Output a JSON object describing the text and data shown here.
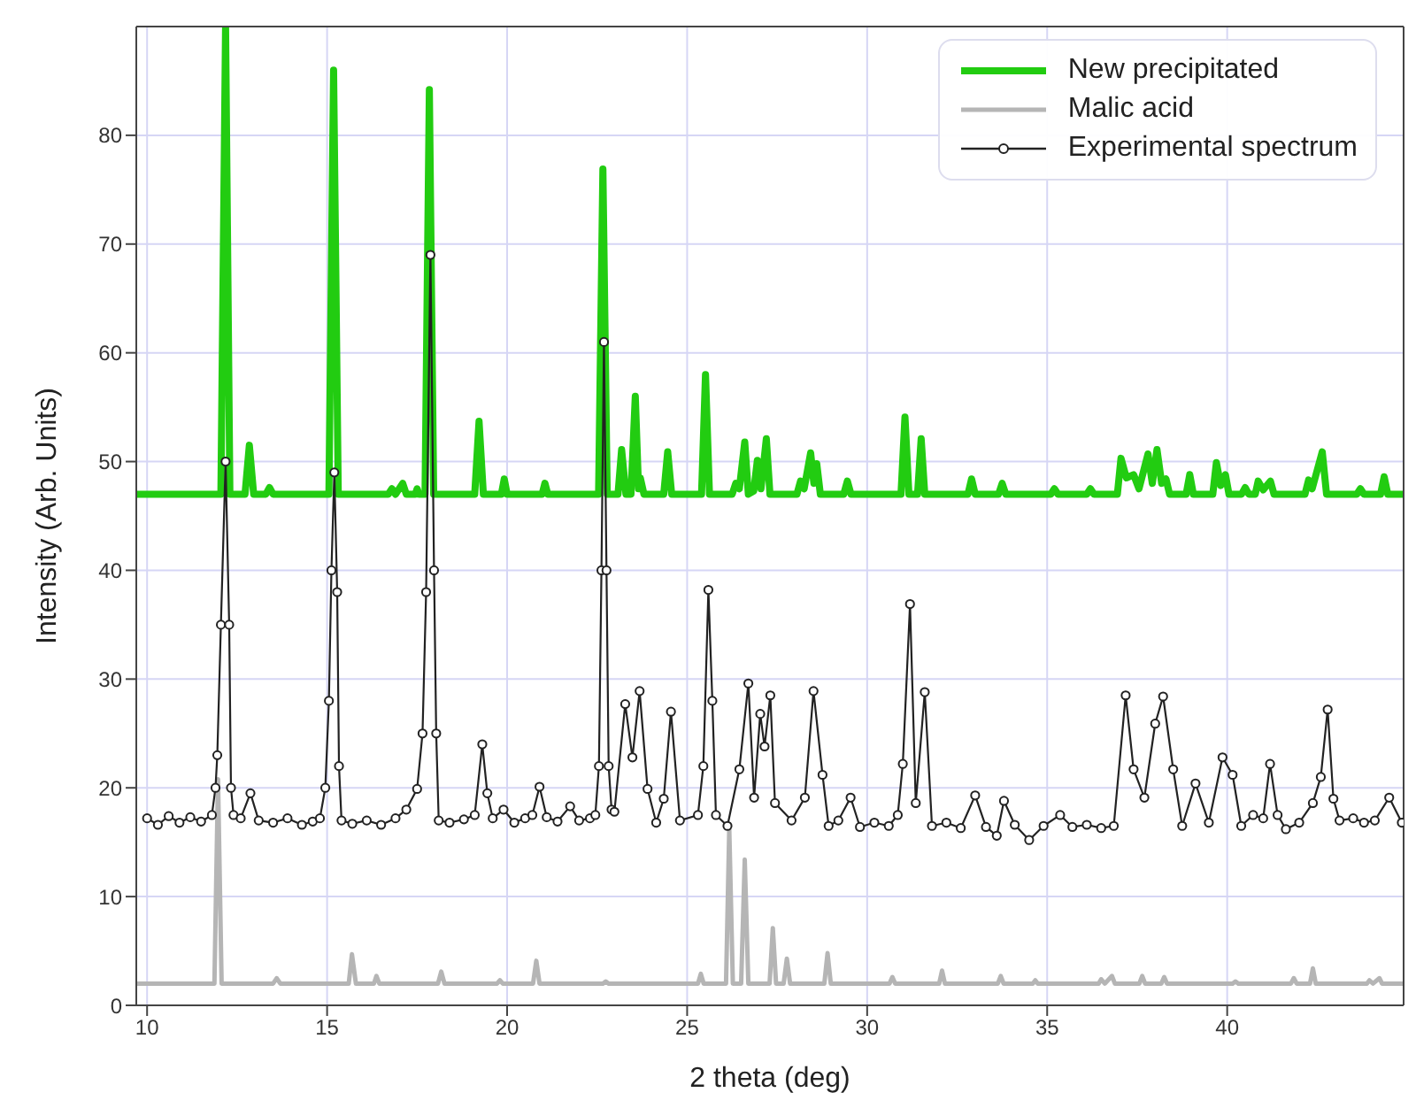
{
  "chart_data": {
    "type": "line",
    "xlabel": "2 theta (deg)",
    "ylabel": "Intensity (Arb. Units)",
    "xlim": [
      9.7,
      44.9
    ],
    "ylim": [
      0,
      90
    ],
    "xticks": [
      10,
      15,
      20,
      25,
      30,
      35,
      40
    ],
    "yticks": [
      0,
      10,
      20,
      30,
      40,
      50,
      60,
      70,
      80
    ],
    "grid": true,
    "legend": "top right",
    "series": [
      {
        "name": "New precipitated",
        "color": "#22cc11",
        "marker": "none",
        "line_style": "solid",
        "x": [
          9.7,
          12.05,
          12.18,
          12.3,
          12.72,
          12.84,
          12.96,
          13.3,
          13.4,
          13.5,
          15.05,
          15.18,
          15.31,
          16.7,
          16.8,
          16.9,
          17.1,
          17.2,
          17.45,
          17.5,
          17.55,
          17.72,
          17.84,
          17.96,
          19.1,
          19.22,
          19.34,
          19.84,
          19.92,
          20.0,
          20.97,
          21.05,
          21.13,
          22.54,
          22.66,
          22.78,
          23.08,
          23.18,
          23.3,
          23.44,
          23.56,
          23.65,
          23.7,
          23.8,
          24.35,
          24.46,
          24.57,
          25.4,
          25.51,
          25.62,
          26.25,
          26.35,
          26.45,
          26.6,
          26.7,
          26.85,
          26.95,
          27.05,
          27.2,
          27.3,
          28.05,
          28.15,
          28.25,
          28.43,
          28.52,
          28.6,
          28.7,
          29.35,
          29.45,
          29.55,
          30.94,
          31.05,
          31.16,
          31.4,
          31.5,
          31.6,
          32.8,
          32.9,
          33.0,
          33.65,
          33.75,
          33.85,
          35.1,
          35.2,
          35.3,
          36.1,
          36.2,
          36.3,
          36.95,
          37.05,
          37.2,
          37.4,
          37.55,
          37.8,
          37.92,
          38.05,
          38.18,
          38.3,
          38.4,
          38.86,
          38.96,
          39.06,
          39.6,
          39.7,
          39.82,
          39.95,
          40.05,
          40.4,
          40.5,
          40.6,
          40.78,
          40.86,
          41.0,
          41.2,
          41.3,
          42.16,
          42.26,
          42.36,
          42.64,
          42.76,
          43.6,
          43.7,
          43.8,
          44.26,
          44.36,
          44.46,
          44.9
        ],
        "values": [
          47,
          47,
          90,
          47,
          47,
          51.5,
          47,
          47,
          47.6,
          47,
          47,
          86,
          47,
          47,
          47.5,
          47,
          48,
          47,
          47,
          47.5,
          47,
          47,
          84.2,
          47,
          47,
          53.7,
          47,
          47,
          48.4,
          47,
          47,
          48,
          47,
          47,
          76.9,
          47,
          47,
          51.1,
          47,
          47,
          56,
          47.5,
          48.5,
          47,
          47,
          50.9,
          47,
          47,
          58,
          47,
          47,
          48,
          47.5,
          51.8,
          47,
          47.3,
          50.1,
          47.5,
          52.1,
          47,
          47,
          48.2,
          47.5,
          50.8,
          48,
          49.8,
          47,
          47,
          48.2,
          47,
          47,
          54.1,
          47,
          47,
          52.1,
          47,
          47,
          48.4,
          47,
          47,
          48,
          47,
          47,
          47.5,
          47,
          47,
          47.5,
          47,
          47,
          50.3,
          48.5,
          48.8,
          47.5,
          50.7,
          48,
          51.1,
          48,
          48.4,
          47,
          47,
          48.8,
          47,
          47,
          49.9,
          47.8,
          48.8,
          47,
          47,
          47.6,
          47,
          47,
          48.2,
          47.4,
          48.2,
          47,
          47,
          48.3,
          47.5,
          50.9,
          47,
          47,
          47.5,
          47,
          47,
          48.6,
          47,
          47
        ]
      },
      {
        "name": "Malic acid",
        "color": "#b5b5b5",
        "marker": "none",
        "line_style": "solid",
        "x": [
          9.7,
          11.87,
          11.97,
          12.07,
          13.5,
          13.6,
          13.7,
          15.6,
          15.69,
          15.8,
          16.3,
          16.37,
          16.45,
          18.08,
          18.17,
          18.26,
          19.72,
          19.8,
          19.88,
          20.72,
          20.81,
          20.9,
          22.66,
          22.74,
          22.82,
          25.3,
          25.38,
          25.46,
          26.08,
          26.17,
          26.27,
          26.5,
          26.6,
          26.7,
          27.29,
          27.38,
          27.47,
          27.68,
          27.77,
          27.86,
          28.81,
          28.9,
          28.99,
          30.62,
          30.7,
          30.78,
          32.0,
          32.08,
          32.16,
          33.63,
          33.71,
          33.79,
          34.6,
          34.67,
          34.74,
          36.43,
          36.5,
          36.6,
          36.8,
          36.88,
          37.56,
          37.64,
          37.72,
          38.17,
          38.25,
          38.33,
          40.15,
          40.23,
          40.31,
          41.77,
          41.85,
          41.93,
          42.3,
          42.38,
          42.46,
          43.88,
          43.95,
          44.05,
          44.23,
          44.3,
          44.9
        ],
        "values": [
          2,
          2,
          20.8,
          2,
          2,
          2.5,
          2,
          2,
          4.7,
          2,
          2,
          2.7,
          2,
          2,
          3.1,
          2,
          2,
          2.3,
          2,
          2,
          4.1,
          2,
          2,
          2.2,
          2,
          2,
          2.9,
          2,
          2,
          16.2,
          2,
          2,
          13.4,
          2,
          2,
          7.1,
          2,
          2,
          4.3,
          2,
          2,
          4.8,
          2,
          2,
          2.6,
          2,
          2,
          3.2,
          2,
          2,
          2.7,
          2,
          2,
          2.3,
          2,
          2,
          2.4,
          2,
          2.7,
          2,
          2,
          2.7,
          2,
          2,
          2.6,
          2,
          2,
          2.2,
          2,
          2,
          2.5,
          2,
          2,
          3.4,
          2,
          2,
          2.3,
          2,
          2.5,
          2,
          2
        ]
      },
      {
        "name": "Experimental spectrum",
        "color": "#222222",
        "marker": "circle",
        "line_style": "solid",
        "x": [
          10.0,
          10.3,
          10.6,
          10.9,
          11.2,
          11.5,
          11.8,
          11.9,
          11.95,
          12.05,
          12.18,
          12.28,
          12.33,
          12.4,
          12.6,
          12.87,
          13.1,
          13.5,
          13.9,
          14.3,
          14.6,
          14.8,
          14.95,
          15.05,
          15.12,
          15.2,
          15.28,
          15.33,
          15.4,
          15.7,
          16.1,
          16.5,
          16.9,
          17.2,
          17.5,
          17.65,
          17.75,
          17.87,
          17.97,
          18.03,
          18.1,
          18.4,
          18.8,
          19.1,
          19.31,
          19.45,
          19.6,
          19.9,
          20.2,
          20.5,
          20.7,
          20.9,
          21.1,
          21.4,
          21.75,
          22.0,
          22.3,
          22.45,
          22.55,
          22.62,
          22.69,
          22.76,
          22.82,
          22.9,
          22.98,
          23.28,
          23.48,
          23.68,
          23.9,
          24.14,
          24.35,
          24.55,
          24.8,
          25.3,
          25.45,
          25.59,
          25.7,
          25.8,
          26.12,
          26.45,
          26.7,
          26.86,
          27.03,
          27.15,
          27.31,
          27.44,
          27.9,
          28.27,
          28.51,
          28.76,
          28.93,
          29.2,
          29.54,
          29.8,
          30.2,
          30.6,
          30.85,
          30.99,
          31.19,
          31.35,
          31.6,
          31.8,
          32.2,
          32.6,
          33.0,
          33.3,
          33.6,
          33.8,
          34.1,
          34.5,
          34.9,
          35.36,
          35.7,
          36.1,
          36.5,
          36.85,
          37.18,
          37.4,
          37.7,
          38.0,
          38.22,
          38.5,
          38.75,
          39.12,
          39.49,
          39.87,
          40.15,
          40.39,
          40.72,
          41.0,
          41.19,
          41.4,
          41.63,
          42.0,
          42.38,
          42.6,
          42.79,
          42.95,
          43.12,
          43.5,
          43.8,
          44.1,
          44.5,
          44.85
        ],
        "values": [
          17.2,
          16.6,
          17.4,
          16.8,
          17.3,
          16.9,
          17.5,
          20,
          23,
          35,
          50,
          35,
          20,
          17.5,
          17.2,
          19.5,
          17.0,
          16.8,
          17.2,
          16.6,
          16.9,
          17.2,
          20,
          28,
          40,
          49,
          38,
          22,
          17,
          16.7,
          17.0,
          16.6,
          17.2,
          18,
          19.9,
          25,
          38,
          69,
          40,
          25,
          17,
          16.8,
          17.1,
          17.5,
          24,
          19.5,
          17.2,
          18,
          16.8,
          17.2,
          17.5,
          20.1,
          17.3,
          16.9,
          18.3,
          17.0,
          17.2,
          17.5,
          22,
          40,
          61,
          40,
          22,
          18,
          17.8,
          27.7,
          22.8,
          28.9,
          19.9,
          16.8,
          19,
          27,
          17,
          17.5,
          22,
          38.2,
          28,
          17.5,
          16.5,
          21.7,
          29.6,
          19.1,
          26.8,
          23.8,
          28.5,
          18.6,
          17,
          19.1,
          28.9,
          21.2,
          16.5,
          17,
          19.1,
          16.4,
          16.8,
          16.5,
          17.5,
          22.2,
          36.9,
          18.6,
          28.8,
          16.5,
          16.8,
          16.3,
          19.3,
          16.4,
          15.6,
          18.8,
          16.6,
          15.2,
          16.5,
          17.5,
          16.4,
          16.6,
          16.3,
          16.5,
          28.5,
          21.7,
          19.1,
          25.9,
          28.4,
          21.7,
          16.5,
          20.4,
          16.8,
          22.8,
          21.2,
          16.5,
          17.5,
          17.2,
          22.2,
          17.5,
          16.2,
          16.8,
          18.6,
          21,
          27.2,
          19,
          17,
          17.2,
          16.8,
          17,
          19.1,
          16.8
        ]
      }
    ]
  }
}
